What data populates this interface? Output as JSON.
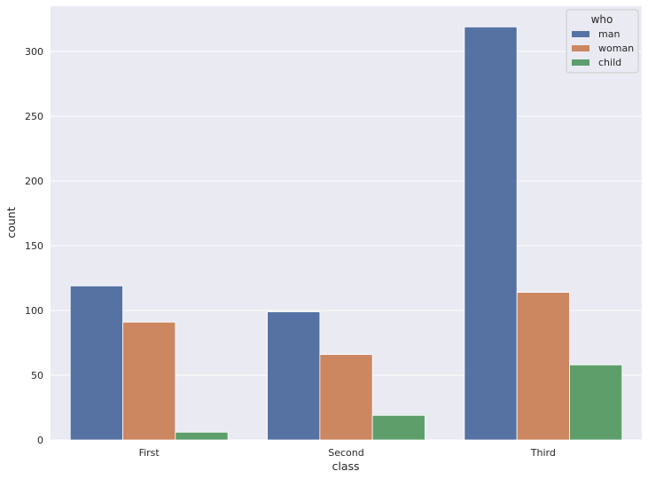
{
  "chart_data": {
    "type": "bar",
    "categories": [
      "First",
      "Second",
      "Third"
    ],
    "series": [
      {
        "name": "man",
        "values": [
          119,
          99,
          319
        ],
        "color": "#5572a3"
      },
      {
        "name": "woman",
        "values": [
          91,
          66,
          114
        ],
        "color": "#cc8660"
      },
      {
        "name": "child",
        "values": [
          6,
          19,
          58
        ],
        "color": "#5d9e6b"
      }
    ],
    "xlabel": "class",
    "ylabel": "count",
    "ylim": [
      0,
      335
    ],
    "yticks": [
      0,
      50,
      100,
      150,
      200,
      250,
      300
    ],
    "grid": true,
    "legend": {
      "title": "who",
      "placement": "top-right"
    },
    "background": "#eaeaf2"
  }
}
